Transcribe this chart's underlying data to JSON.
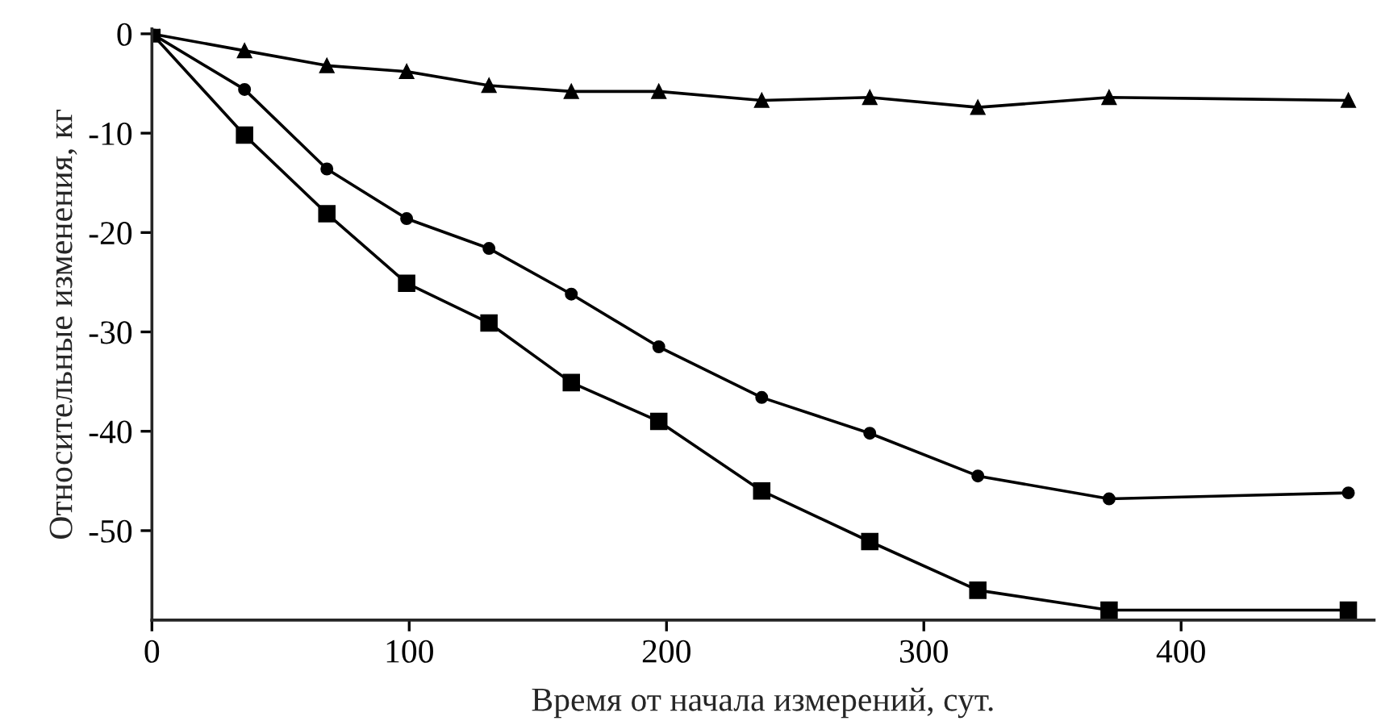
{
  "chart_data": {
    "type": "line",
    "xlabel": "Время от начала измерений, сут.",
    "ylabel": "Относительные изменения, кг",
    "x": [
      0,
      36,
      68,
      99,
      131,
      163,
      197,
      237,
      279,
      321,
      372,
      465
    ],
    "series": [
      {
        "color": "#000000",
        "marker": "triangle",
        "values": [
          0,
          -1.7,
          -3.2,
          -3.8,
          -5.2,
          -5.8,
          -5.8,
          -6.7,
          -6.4,
          -7.4,
          -6.4,
          -6.7
        ]
      },
      {
        "color": "#000000",
        "marker": "circle",
        "values": [
          0,
          -5.6,
          -13.6,
          -18.6,
          -21.6,
          -26.2,
          -31.5,
          -36.6,
          -40.2,
          -44.5,
          -46.8,
          -46.2
        ]
      },
      {
        "color": "#000000",
        "marker": "square",
        "values": [
          0,
          -10.2,
          -18.1,
          -25.1,
          -29.1,
          -35.1,
          -39,
          -46,
          -51.1,
          -56,
          -58,
          -58
        ]
      }
    ],
    "xlim": [
      0,
      475
    ],
    "ylim": [
      -59,
      0.5
    ],
    "xticks": [
      0,
      100,
      200,
      300,
      400
    ],
    "yticks": [
      0,
      {
        "value": -10,
        "label": "-10"
      },
      {
        "value": -20,
        "label": "-20"
      },
      {
        "value": -30,
        "label": "-30"
      },
      {
        "value": -40,
        "label": "-40"
      },
      {
        "value": -50,
        "label": "-50"
      }
    ],
    "grid": false,
    "legend": false,
    "line_style": "solid"
  }
}
